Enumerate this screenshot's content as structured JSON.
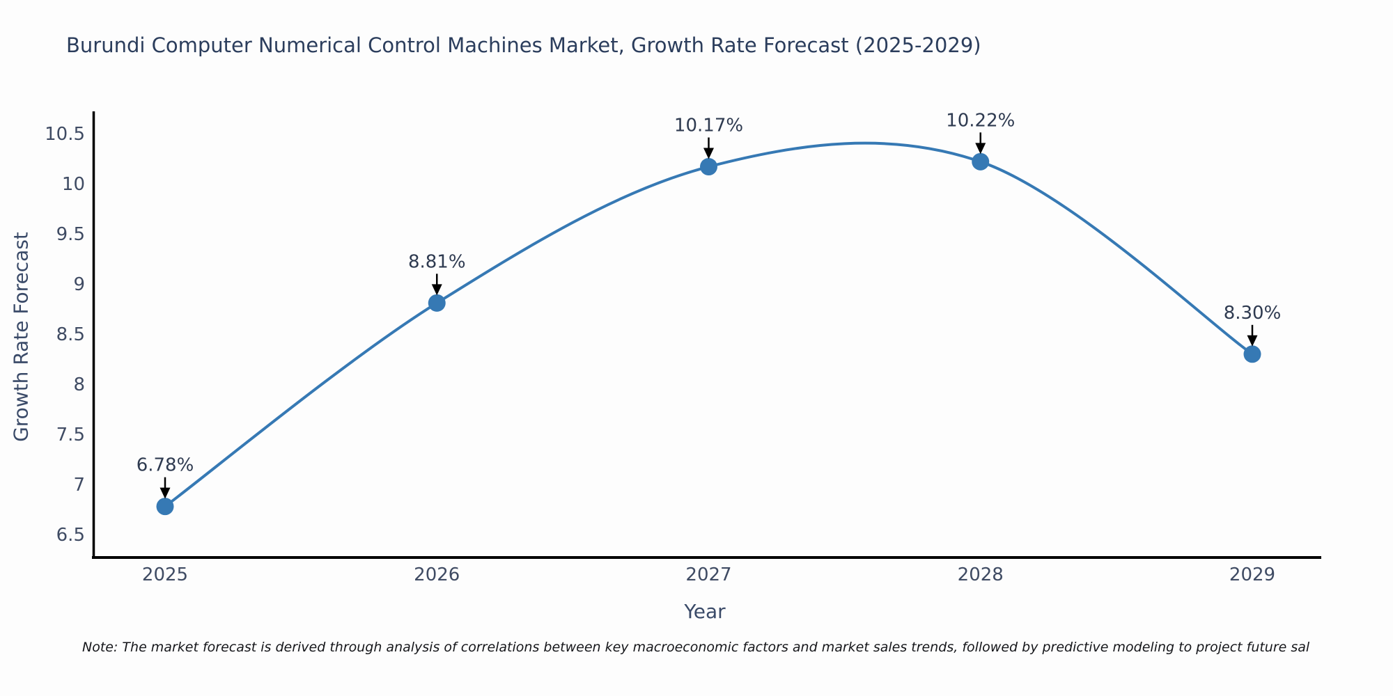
{
  "chart_data": {
    "type": "line",
    "title": "Burundi Computer Numerical Control Machines Market, Growth Rate Forecast (2025-2029)",
    "xlabel": "Year",
    "ylabel": "Growth Rate Forecast",
    "x": [
      2025,
      2026,
      2027,
      2028,
      2029
    ],
    "series": [
      {
        "name": "Growth Rate Forecast",
        "values": [
          6.78,
          8.81,
          10.17,
          10.22,
          8.3
        ],
        "point_labels": [
          "6.78%",
          "8.81%",
          "10.17%",
          "10.22%",
          "8.30%"
        ]
      }
    ],
    "y_ticks": [
      6.5,
      7,
      7.5,
      8,
      8.5,
      9,
      9.5,
      10,
      10.5
    ],
    "x_ticks": [
      "2025",
      "2026",
      "2027",
      "2028",
      "2029"
    ],
    "ylim": [
      6.28,
      10.72
    ],
    "grid": false,
    "legend_position": "none",
    "smoothed_line": true,
    "colors": {
      "line": "#3679b4",
      "marker": "#3679b4",
      "arrow": "#000000",
      "annotation_text": "#2e3a50",
      "tick_label": "#3f4b63",
      "axis_spine": "#000000",
      "title": "#2b3d5c"
    },
    "note": "Note: The market forecast is derived through analysis of correlations between key macroeconomic factors and market sales trends, followed by predictive modeling to project future sal"
  }
}
